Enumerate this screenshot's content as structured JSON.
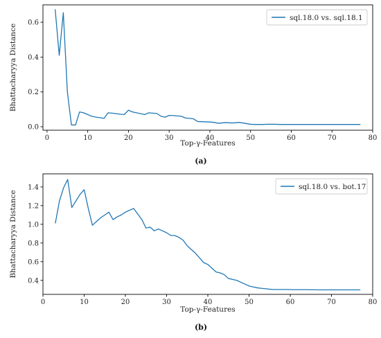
{
  "colors": {
    "line": "#1f77b4",
    "axis": "#000000",
    "text": "#222222"
  },
  "chart_data": [
    {
      "type": "line",
      "caption": "(a)",
      "xlabel": "Top-γ-Features",
      "ylabel": "Bhattacharyya Distance",
      "xlim": [
        -1,
        80
      ],
      "ylim": [
        -0.02,
        0.7
      ],
      "xticks": [
        0,
        10,
        20,
        30,
        40,
        50,
        60,
        70,
        80
      ],
      "yticks": [
        0.0,
        0.2,
        0.4,
        0.6
      ],
      "ytick_labels": [
        "0.0",
        "0.2",
        "0.4",
        "0.6"
      ],
      "grid": false,
      "legend_position": "top-right",
      "series": [
        {
          "name": "sql.18.0 vs. sql.18.1",
          "x": [
            2,
            3,
            4,
            5,
            6,
            7,
            8,
            9,
            10,
            11,
            12,
            13,
            14,
            15,
            16,
            17,
            18,
            19,
            20,
            21,
            22,
            23,
            24,
            25,
            26,
            27,
            28,
            29,
            30,
            31,
            32,
            33,
            34,
            35,
            36,
            37,
            38,
            39,
            40,
            41,
            42,
            43,
            44,
            45,
            46,
            47,
            48,
            49,
            50,
            51,
            52,
            53,
            54,
            55,
            56,
            57,
            58,
            59,
            60,
            61,
            62,
            63,
            64,
            65,
            66,
            67,
            68,
            69,
            70,
            71,
            72,
            73,
            74,
            75,
            76,
            77
          ],
          "y": [
            0.675,
            0.41,
            0.655,
            0.2,
            0.01,
            0.01,
            0.085,
            0.08,
            0.07,
            0.06,
            0.055,
            0.052,
            0.048,
            0.08,
            0.078,
            0.075,
            0.072,
            0.07,
            0.095,
            0.085,
            0.08,
            0.075,
            0.07,
            0.08,
            0.078,
            0.076,
            0.06,
            0.055,
            0.065,
            0.064,
            0.062,
            0.06,
            0.05,
            0.048,
            0.045,
            0.03,
            0.029,
            0.028,
            0.027,
            0.025,
            0.02,
            0.022,
            0.024,
            0.022,
            0.022,
            0.025,
            0.022,
            0.018,
            0.014,
            0.013,
            0.013,
            0.013,
            0.014,
            0.014,
            0.014,
            0.013,
            0.013,
            0.013,
            0.013,
            0.013,
            0.013,
            0.013,
            0.013,
            0.013,
            0.013,
            0.013,
            0.013,
            0.013,
            0.013,
            0.013,
            0.013,
            0.013,
            0.013,
            0.013,
            0.013,
            0.013
          ]
        }
      ]
    },
    {
      "type": "line",
      "caption": "(b)",
      "xlabel": "Top-γ-Features",
      "ylabel": "Bhattacharyya Distance",
      "xlim": [
        0,
        80
      ],
      "ylim": [
        0.25,
        1.54
      ],
      "xticks": [
        0,
        10,
        20,
        30,
        40,
        50,
        60,
        70,
        80
      ],
      "yticks": [
        0.4,
        0.6,
        0.8,
        1.0,
        1.2,
        1.4
      ],
      "ytick_labels": [
        "0.4",
        "0.6",
        "0.8",
        "1.0",
        "1.2",
        "1.4"
      ],
      "grid": false,
      "legend_position": "top-right",
      "series": [
        {
          "name": "sql.18.0 vs. bot.17",
          "x": [
            3,
            4,
            5,
            6,
            7,
            8,
            9,
            10,
            11,
            12,
            13,
            14,
            15,
            16,
            17,
            18,
            19,
            20,
            21,
            22,
            23,
            24,
            25,
            26,
            27,
            28,
            29,
            30,
            31,
            32,
            33,
            34,
            35,
            36,
            37,
            38,
            39,
            40,
            41,
            42,
            43,
            44,
            45,
            46,
            47,
            48,
            49,
            50,
            51,
            52,
            53,
            54,
            55,
            56,
            57,
            58,
            59,
            60,
            61,
            62,
            63,
            64,
            65,
            66,
            67,
            68,
            69,
            70,
            71,
            72,
            73,
            74,
            75,
            76,
            77
          ],
          "y": [
            1.01,
            1.25,
            1.39,
            1.48,
            1.18,
            1.25,
            1.32,
            1.37,
            1.17,
            0.99,
            1.03,
            1.07,
            1.1,
            1.13,
            1.05,
            1.08,
            1.1,
            1.13,
            1.15,
            1.17,
            1.11,
            1.05,
            0.96,
            0.97,
            0.93,
            0.95,
            0.93,
            0.91,
            0.88,
            0.88,
            0.86,
            0.83,
            0.77,
            0.73,
            0.69,
            0.64,
            0.59,
            0.57,
            0.53,
            0.49,
            0.48,
            0.46,
            0.42,
            0.41,
            0.4,
            0.38,
            0.36,
            0.34,
            0.33,
            0.32,
            0.315,
            0.31,
            0.305,
            0.302,
            0.302,
            0.302,
            0.302,
            0.301,
            0.3,
            0.3,
            0.3,
            0.3,
            0.299,
            0.299,
            0.298,
            0.298,
            0.298,
            0.298,
            0.298,
            0.298,
            0.298,
            0.298,
            0.298,
            0.298,
            0.298
          ]
        }
      ]
    }
  ]
}
